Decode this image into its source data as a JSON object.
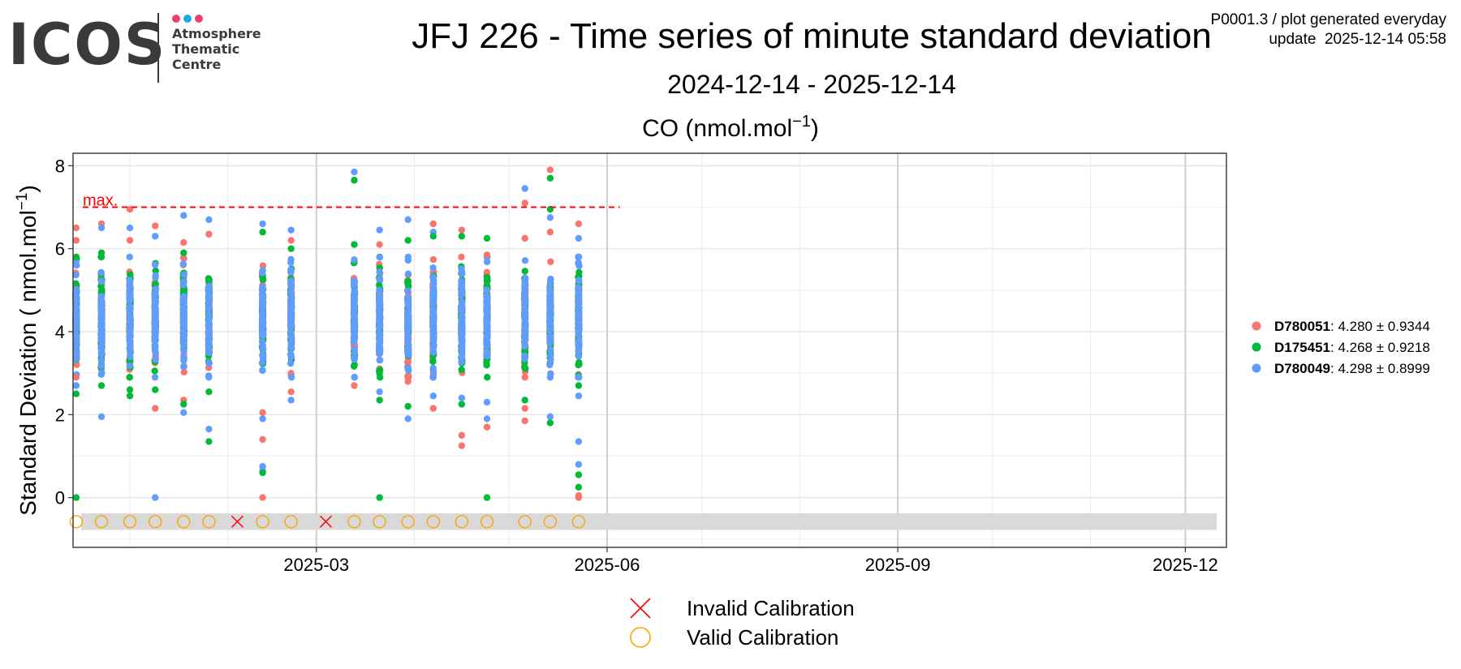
{
  "logo": {
    "wordmark": "ICOS",
    "lines": [
      "Atmosphere",
      "Thematic",
      "Centre"
    ],
    "dot_colors": [
      "#e8416f",
      "#1fa8e6",
      "#e8416f"
    ]
  },
  "meta": {
    "line1": "P0001.3 / plot generated everyday",
    "line2": "update  2025-12-14 05:58"
  },
  "header": {
    "title": "JFJ 226 - Time series of minute standard deviation",
    "subtitle": "2024-12-14 - 2025-12-14"
  },
  "chart_data": {
    "type": "scatter",
    "panel_title": "CO (nmol.mol⁻¹)",
    "ylabel": "Standard Deviation ( nmol.mol⁻¹)",
    "xlabel": "",
    "x_range": [
      "2024-12-14",
      "2025-12-14"
    ],
    "ylim": [
      -1.2,
      8.3
    ],
    "y_ticks": [
      0,
      2,
      4,
      6,
      8
    ],
    "x_ticks": [
      "2025-03",
      "2025-06",
      "2025-09",
      "2025-12"
    ],
    "grid": true,
    "max_line": {
      "label": "max.",
      "value": 7.0,
      "until": "2025-06-05",
      "color": "#ff0000"
    },
    "series": [
      {
        "name": "D780051",
        "stat": "4.280 ± 0.9344",
        "color": "#f8766d"
      },
      {
        "name": "D175451",
        "stat": "4.268 ± 0.9218",
        "color": "#00ba38"
      },
      {
        "name": "D780049",
        "stat": "4.298 ± 0.8999",
        "color": "#619cff"
      }
    ],
    "measurement_days": [
      "2024-12-15",
      "2024-12-23",
      "2025-01-01",
      "2025-01-09",
      "2025-01-18",
      "2025-01-26",
      "2025-02-12",
      "2025-02-21",
      "2025-03-13",
      "2025-03-21",
      "2025-03-30",
      "2025-04-07",
      "2025-04-16",
      "2025-04-24",
      "2025-05-06",
      "2025-05-14",
      "2025-05-23"
    ],
    "outliers": [
      {
        "date": "2024-12-15",
        "s": 0,
        "y": 6.5
      },
      {
        "date": "2024-12-15",
        "s": 0,
        "y": 6.2
      },
      {
        "date": "2024-12-15",
        "s": 1,
        "y": 5.8
      },
      {
        "date": "2024-12-15",
        "s": 0,
        "y": 2.9
      },
      {
        "date": "2024-12-15",
        "s": 1,
        "y": 2.5
      },
      {
        "date": "2024-12-15",
        "s": 1,
        "y": 0
      },
      {
        "date": "2024-12-15",
        "s": 2,
        "y": 2.7
      },
      {
        "date": "2024-12-23",
        "s": 0,
        "y": 6.6
      },
      {
        "date": "2024-12-23",
        "s": 2,
        "y": 6.5
      },
      {
        "date": "2024-12-23",
        "s": 1,
        "y": 5.9
      },
      {
        "date": "2024-12-23",
        "s": 1,
        "y": 2.7
      },
      {
        "date": "2024-12-23",
        "s": 2,
        "y": 1.95
      },
      {
        "date": "2025-01-01",
        "s": 0,
        "y": 6.95
      },
      {
        "date": "2025-01-01",
        "s": 2,
        "y": 6.5
      },
      {
        "date": "2025-01-01",
        "s": 0,
        "y": 6.2
      },
      {
        "date": "2025-01-01",
        "s": 1,
        "y": 2.6
      },
      {
        "date": "2025-01-01",
        "s": 1,
        "y": 2.45
      },
      {
        "date": "2025-01-09",
        "s": 0,
        "y": 6.55
      },
      {
        "date": "2025-01-09",
        "s": 2,
        "y": 6.3
      },
      {
        "date": "2025-01-09",
        "s": 0,
        "y": 2.15
      },
      {
        "date": "2025-01-09",
        "s": 1,
        "y": 2.6
      },
      {
        "date": "2025-01-09",
        "s": 2,
        "y": 0
      },
      {
        "date": "2025-01-18",
        "s": 2,
        "y": 6.8
      },
      {
        "date": "2025-01-18",
        "s": 0,
        "y": 6.15
      },
      {
        "date": "2025-01-18",
        "s": 1,
        "y": 5.9
      },
      {
        "date": "2025-01-18",
        "s": 0,
        "y": 2.35
      },
      {
        "date": "2025-01-18",
        "s": 1,
        "y": 2.25
      },
      {
        "date": "2025-01-18",
        "s": 2,
        "y": 2.05
      },
      {
        "date": "2025-01-26",
        "s": 2,
        "y": 6.7
      },
      {
        "date": "2025-01-26",
        "s": 0,
        "y": 6.35
      },
      {
        "date": "2025-01-26",
        "s": 2,
        "y": 1.65
      },
      {
        "date": "2025-01-26",
        "s": 1,
        "y": 1.35
      },
      {
        "date": "2025-01-26",
        "s": 1,
        "y": 2.55
      },
      {
        "date": "2025-02-12",
        "s": 2,
        "y": 6.6
      },
      {
        "date": "2025-02-12",
        "s": 1,
        "y": 6.4
      },
      {
        "date": "2025-02-12",
        "s": 0,
        "y": 2.05
      },
      {
        "date": "2025-02-12",
        "s": 2,
        "y": 1.9
      },
      {
        "date": "2025-02-12",
        "s": 0,
        "y": 1.4
      },
      {
        "date": "2025-02-12",
        "s": 2,
        "y": 0.75
      },
      {
        "date": "2025-02-12",
        "s": 2,
        "y": 0.65
      },
      {
        "date": "2025-02-12",
        "s": 1,
        "y": 0.6
      },
      {
        "date": "2025-02-12",
        "s": 0,
        "y": 0
      },
      {
        "date": "2025-02-21",
        "s": 2,
        "y": 6.45
      },
      {
        "date": "2025-02-21",
        "s": 0,
        "y": 6.2
      },
      {
        "date": "2025-02-21",
        "s": 1,
        "y": 6.0
      },
      {
        "date": "2025-02-21",
        "s": 0,
        "y": 2.55
      },
      {
        "date": "2025-02-21",
        "s": 2,
        "y": 2.35
      },
      {
        "date": "2025-03-13",
        "s": 2,
        "y": 7.85
      },
      {
        "date": "2025-03-13",
        "s": 1,
        "y": 7.65
      },
      {
        "date": "2025-03-13",
        "s": 1,
        "y": 6.1
      },
      {
        "date": "2025-03-13",
        "s": 0,
        "y": 2.7
      },
      {
        "date": "2025-03-21",
        "s": 2,
        "y": 6.45
      },
      {
        "date": "2025-03-21",
        "s": 0,
        "y": 6.1
      },
      {
        "date": "2025-03-21",
        "s": 1,
        "y": 2.35
      },
      {
        "date": "2025-03-21",
        "s": 2,
        "y": 2.55
      },
      {
        "date": "2025-03-21",
        "s": 1,
        "y": 0
      },
      {
        "date": "2025-03-30",
        "s": 2,
        "y": 6.7
      },
      {
        "date": "2025-03-30",
        "s": 1,
        "y": 6.2
      },
      {
        "date": "2025-03-30",
        "s": 0,
        "y": 2.8
      },
      {
        "date": "2025-03-30",
        "s": 1,
        "y": 2.2
      },
      {
        "date": "2025-03-30",
        "s": 2,
        "y": 1.9
      },
      {
        "date": "2025-04-07",
        "s": 0,
        "y": 6.6
      },
      {
        "date": "2025-04-07",
        "s": 2,
        "y": 6.4
      },
      {
        "date": "2025-04-07",
        "s": 1,
        "y": 6.3
      },
      {
        "date": "2025-04-07",
        "s": 0,
        "y": 2.15
      },
      {
        "date": "2025-04-07",
        "s": 2,
        "y": 2.45
      },
      {
        "date": "2025-04-16",
        "s": 0,
        "y": 6.45
      },
      {
        "date": "2025-04-16",
        "s": 1,
        "y": 6.3
      },
      {
        "date": "2025-04-16",
        "s": 1,
        "y": 2.25
      },
      {
        "date": "2025-04-16",
        "s": 0,
        "y": 1.5
      },
      {
        "date": "2025-04-16",
        "s": 0,
        "y": 1.25
      },
      {
        "date": "2025-04-16",
        "s": 2,
        "y": 2.4
      },
      {
        "date": "2025-04-24",
        "s": 1,
        "y": 6.25
      },
      {
        "date": "2025-04-24",
        "s": 0,
        "y": 5.85
      },
      {
        "date": "2025-04-24",
        "s": 2,
        "y": 2.3
      },
      {
        "date": "2025-04-24",
        "s": 2,
        "y": 1.9
      },
      {
        "date": "2025-04-24",
        "s": 0,
        "y": 1.7
      },
      {
        "date": "2025-04-24",
        "s": 1,
        "y": 0
      },
      {
        "date": "2025-05-06",
        "s": 2,
        "y": 7.45
      },
      {
        "date": "2025-05-06",
        "s": 0,
        "y": 7.1
      },
      {
        "date": "2025-05-06",
        "s": 0,
        "y": 6.25
      },
      {
        "date": "2025-05-06",
        "s": 1,
        "y": 2.35
      },
      {
        "date": "2025-05-06",
        "s": 0,
        "y": 2.15
      },
      {
        "date": "2025-05-06",
        "s": 0,
        "y": 1.85
      },
      {
        "date": "2025-05-14",
        "s": 0,
        "y": 7.9
      },
      {
        "date": "2025-05-14",
        "s": 1,
        "y": 7.7
      },
      {
        "date": "2025-05-14",
        "s": 1,
        "y": 6.95
      },
      {
        "date": "2025-05-14",
        "s": 2,
        "y": 6.75
      },
      {
        "date": "2025-05-14",
        "s": 0,
        "y": 6.4
      },
      {
        "date": "2025-05-14",
        "s": 2,
        "y": 1.95
      },
      {
        "date": "2025-05-14",
        "s": 1,
        "y": 1.8
      },
      {
        "date": "2025-05-23",
        "s": 0,
        "y": 6.6
      },
      {
        "date": "2025-05-23",
        "s": 2,
        "y": 6.25
      },
      {
        "date": "2025-05-23",
        "s": 1,
        "y": 2.7
      },
      {
        "date": "2025-05-23",
        "s": 2,
        "y": 2.45
      },
      {
        "date": "2025-05-23",
        "s": 2,
        "y": 1.35
      },
      {
        "date": "2025-05-23",
        "s": 2,
        "y": 0.8
      },
      {
        "date": "2025-05-23",
        "s": 1,
        "y": 0.55
      },
      {
        "date": "2025-05-23",
        "s": 1,
        "y": 0.25
      },
      {
        "date": "2025-05-23",
        "s": 0,
        "y": 0.05
      },
      {
        "date": "2025-05-23",
        "s": 0,
        "y": 0
      }
    ],
    "calibrations": [
      {
        "date": "2024-12-15",
        "status": "valid"
      },
      {
        "date": "2024-12-23",
        "status": "valid"
      },
      {
        "date": "2025-01-01",
        "status": "valid"
      },
      {
        "date": "2025-01-09",
        "status": "valid"
      },
      {
        "date": "2025-01-18",
        "status": "valid"
      },
      {
        "date": "2025-01-26",
        "status": "valid"
      },
      {
        "date": "2025-02-04",
        "status": "invalid"
      },
      {
        "date": "2025-02-12",
        "status": "valid"
      },
      {
        "date": "2025-02-21",
        "status": "valid"
      },
      {
        "date": "2025-03-04",
        "status": "invalid"
      },
      {
        "date": "2025-03-13",
        "status": "valid"
      },
      {
        "date": "2025-03-21",
        "status": "valid"
      },
      {
        "date": "2025-03-30",
        "status": "valid"
      },
      {
        "date": "2025-04-07",
        "status": "valid"
      },
      {
        "date": "2025-04-16",
        "status": "valid"
      },
      {
        "date": "2025-04-24",
        "status": "valid"
      },
      {
        "date": "2025-05-06",
        "status": "valid"
      },
      {
        "date": "2025-05-14",
        "status": "valid"
      },
      {
        "date": "2025-05-23",
        "status": "valid"
      }
    ],
    "calibration_legend": {
      "invalid": "Invalid Calibration",
      "valid": "Valid Calibration",
      "invalid_color": "#ff0000",
      "valid_color": "#ffa500"
    }
  }
}
